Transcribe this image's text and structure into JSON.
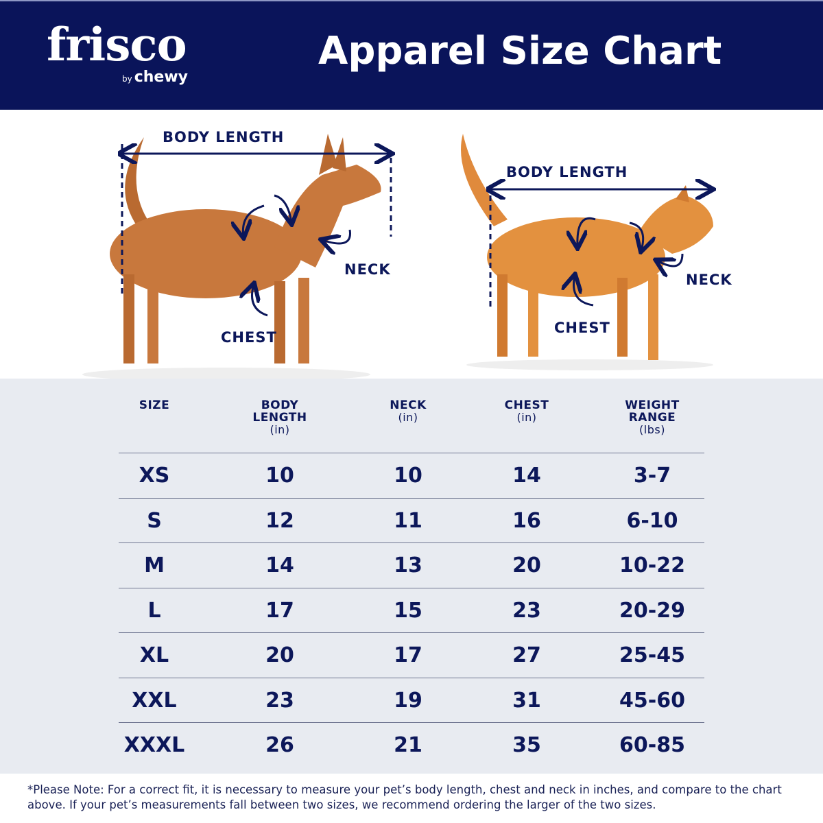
{
  "header": {
    "brand": "frisco",
    "brand_sub_small": "by",
    "brand_sub": "chewy",
    "title": "Apparel Size Chart",
    "color": "#0a145a"
  },
  "diagram": {
    "dog": {
      "body_length": "BODY LENGTH",
      "neck": "NECK",
      "chest": "CHEST"
    },
    "cat": {
      "body_length": "BODY LENGTH",
      "neck": "NECK",
      "chest": "CHEST"
    }
  },
  "table": {
    "columns": [
      {
        "label": "SIZE",
        "unit": ""
      },
      {
        "label": "BODY LENGTH",
        "unit": "(in)"
      },
      {
        "label": "NECK",
        "unit": "(in)"
      },
      {
        "label": "CHEST",
        "unit": "(in)"
      },
      {
        "label": "WEIGHT RANGE",
        "unit": "(lbs)"
      }
    ],
    "rows": [
      [
        "XS",
        "10",
        "10",
        "14",
        "3-7"
      ],
      [
        "S",
        "12",
        "11",
        "16",
        "6-10"
      ],
      [
        "M",
        "14",
        "13",
        "20",
        "10-22"
      ],
      [
        "L",
        "17",
        "15",
        "23",
        "20-29"
      ],
      [
        "XL",
        "20",
        "17",
        "27",
        "25-45"
      ],
      [
        "XXL",
        "23",
        "19",
        "31",
        "45-60"
      ],
      [
        "XXXL",
        "26",
        "21",
        "35",
        "60-85"
      ]
    ]
  },
  "footer": {
    "note": "*Please Note: For a correct fit, it is necessary to measure your pet’s body length, chest and neck in inches, and compare to the chart above. If your pet’s measurements fall between two sizes, we recommend ordering the larger of the two sizes."
  }
}
